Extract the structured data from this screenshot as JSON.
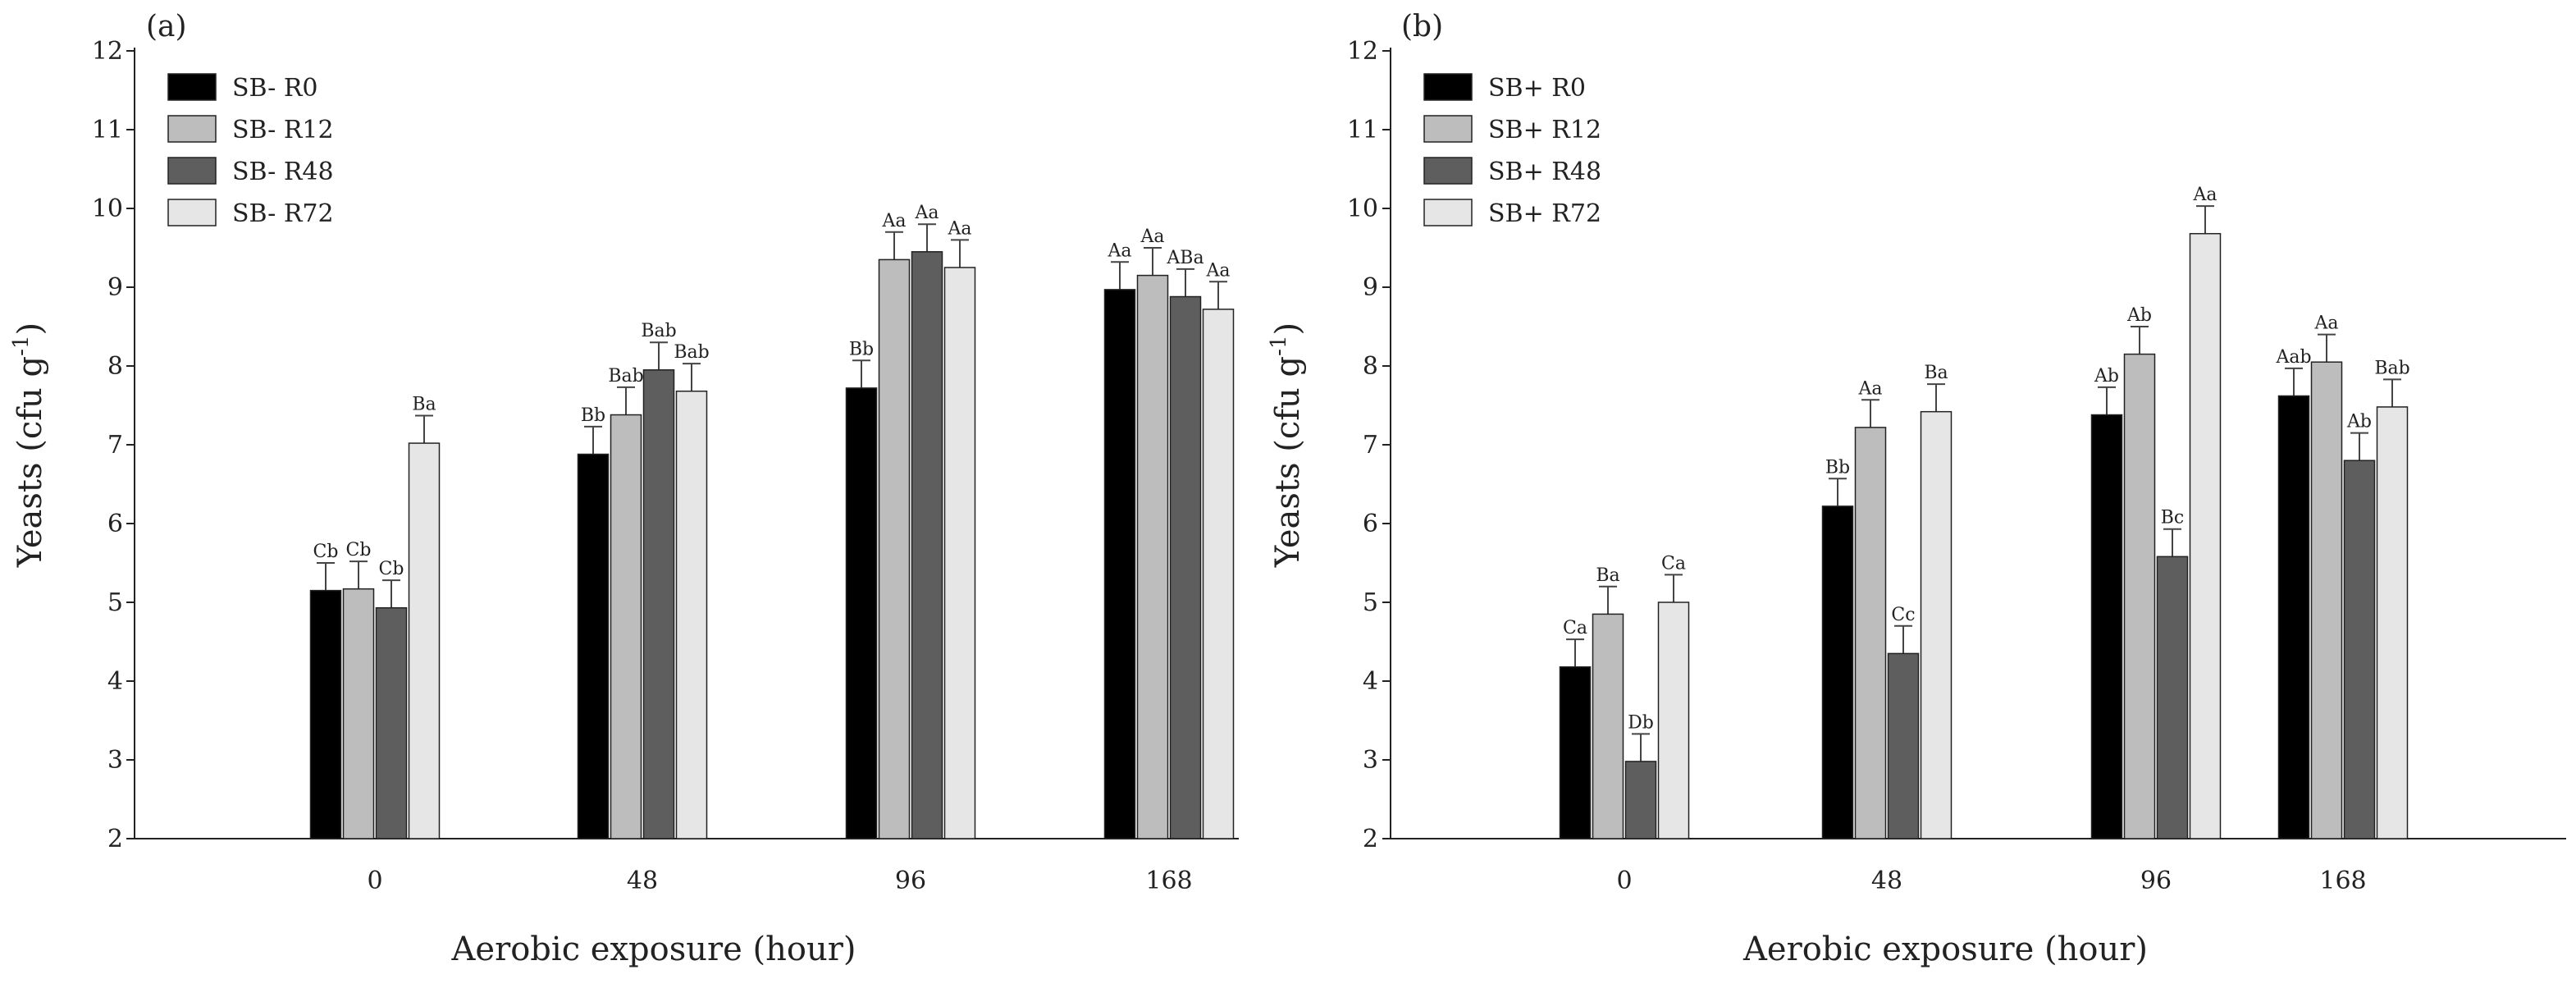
{
  "chart_data": [
    {
      "type": "bar",
      "panel_label": "(a)",
      "title": "",
      "xlabel": "Aerobic exposure (hour)",
      "ylabel": "Yeasts (cfu g",
      "ylabel_superscript": "-1",
      "ylabel_close": ")",
      "ylim": [
        2,
        12
      ],
      "yticks": [
        2,
        3,
        4,
        5,
        6,
        7,
        8,
        9,
        10,
        11,
        12
      ],
      "categories": [
        "0",
        "48",
        "96",
        "168"
      ],
      "legend_position": "top-left",
      "series": [
        {
          "name": "SB- R0",
          "color": "#000000",
          "values": [
            5.15,
            6.88,
            7.72,
            8.97
          ],
          "errors": [
            0.35,
            0.35,
            0.35,
            0.35
          ],
          "labels": [
            "Cb",
            "Bb",
            "Bb",
            "Aa"
          ]
        },
        {
          "name": "SB- R12",
          "color": "#bdbdbd",
          "values": [
            5.17,
            7.38,
            9.35,
            9.15
          ],
          "errors": [
            0.35,
            0.35,
            0.35,
            0.35
          ],
          "labels": [
            "Cb",
            "Bab",
            "Aa",
            "Aa"
          ]
        },
        {
          "name": "SB- R48",
          "color": "#5e5e5e",
          "values": [
            4.93,
            7.95,
            9.45,
            8.88
          ],
          "errors": [
            0.35,
            0.35,
            0.35,
            0.35
          ],
          "labels": [
            "Cb",
            "Bab",
            "Aa",
            "ABa"
          ]
        },
        {
          "name": "SB- R72",
          "color": "#e6e6e6",
          "values": [
            7.02,
            7.68,
            9.25,
            8.72
          ],
          "errors": [
            0.35,
            0.35,
            0.35,
            0.35
          ],
          "labels": [
            "Ba",
            "Bab",
            "Aa",
            "Aa"
          ]
        }
      ]
    },
    {
      "type": "bar",
      "panel_label": "(b)",
      "title": "",
      "xlabel": "Aerobic exposure (hour)",
      "ylabel": "Yeasts (cfu g",
      "ylabel_superscript": "-1",
      "ylabel_close": ")",
      "ylim": [
        2,
        12
      ],
      "yticks": [
        2,
        3,
        4,
        5,
        6,
        7,
        8,
        9,
        10,
        11,
        12
      ],
      "categories": [
        "0",
        "48",
        "96",
        "168"
      ],
      "legend_position": "top-left",
      "series": [
        {
          "name": "SB+ R0",
          "color": "#000000",
          "values": [
            4.18,
            6.22,
            7.38,
            7.62
          ],
          "errors": [
            0.35,
            0.35,
            0.35,
            0.35
          ],
          "labels": [
            "Ca",
            "Bb",
            "Ab",
            "Aab"
          ]
        },
        {
          "name": "SB+ R12",
          "color": "#bdbdbd",
          "values": [
            4.85,
            7.22,
            8.15,
            8.05
          ],
          "errors": [
            0.35,
            0.35,
            0.35,
            0.35
          ],
          "labels": [
            "Ba",
            "Aa",
            "Ab",
            "Aa"
          ]
        },
        {
          "name": "SB+ R48",
          "color": "#5e5e5e",
          "values": [
            2.98,
            4.35,
            5.58,
            6.8
          ],
          "errors": [
            0.35,
            0.35,
            0.35,
            0.35
          ],
          "labels": [
            "Db",
            "Cc",
            "Bc",
            "Ab"
          ]
        },
        {
          "name": "SB+ R72",
          "color": "#e6e6e6",
          "values": [
            5.0,
            7.42,
            9.68,
            7.48
          ],
          "errors": [
            0.35,
            0.35,
            0.35,
            0.35
          ],
          "labels": [
            "Ca",
            "Ba",
            "Aa",
            "Bab"
          ]
        }
      ]
    }
  ]
}
